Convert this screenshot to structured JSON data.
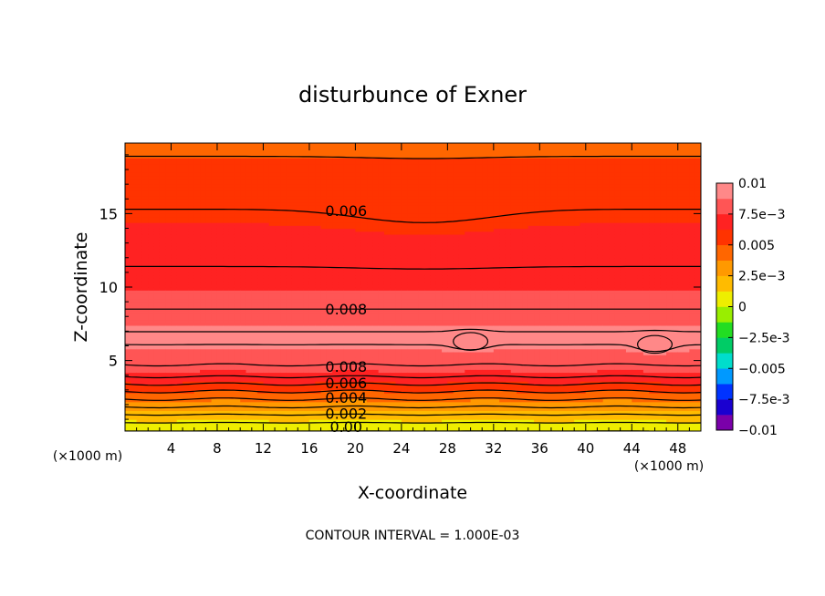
{
  "chart_data": {
    "type": "heatmap",
    "title": "disturbunce of Exner",
    "xlabel": "X-coordinate",
    "ylabel": "Z-coordinate",
    "x_unit_label": "(×1000 m)",
    "y_unit_label": "(×1000 m)",
    "x_ticks": [
      4,
      8,
      12,
      16,
      20,
      24,
      28,
      32,
      36,
      40,
      44,
      48
    ],
    "y_ticks": [
      5,
      10,
      15
    ],
    "xlim": [
      0,
      50
    ],
    "ylim": [
      0.2,
      19.8
    ],
    "footer": "CONTOUR INTERVAL = 1.000E-03",
    "colorbar": {
      "labels": [
        "0.01",
        "7.5e-3",
        "0.005",
        "2.5e-3",
        "0",
        "-2.5e-3",
        "-0.005",
        "-7.5e-3",
        "-0.01"
      ],
      "range": [
        -0.01,
        0.01
      ]
    },
    "contour_labels": [
      {
        "text": "0.006",
        "x": 19.2,
        "z": 15.2
      },
      {
        "text": "0.008",
        "x": 19.2,
        "z": 8.5
      },
      {
        "text": "0.008",
        "x": 19.2,
        "z": 4.6
      },
      {
        "text": "0.006",
        "x": 19.2,
        "z": 3.5
      },
      {
        "text": "0.004",
        "x": 19.2,
        "z": 2.5
      },
      {
        "text": "0.002",
        "x": 19.2,
        "z": 1.4
      },
      {
        "text": "0.00",
        "x": 19.2,
        "z": 0.5
      }
    ],
    "field_profile": [
      {
        "z": 0.2,
        "value": 0.0
      },
      {
        "z": 1.0,
        "value": 0.0014
      },
      {
        "z": 2.0,
        "value": 0.0033
      },
      {
        "z": 3.0,
        "value": 0.0052
      },
      {
        "z": 4.0,
        "value": 0.0072
      },
      {
        "z": 4.7,
        "value": 0.008
      },
      {
        "z": 6.5,
        "value": 0.0093
      },
      {
        "z": 8.5,
        "value": 0.008
      },
      {
        "z": 11.0,
        "value": 0.0071
      },
      {
        "z": 13.0,
        "value": 0.0066
      },
      {
        "z": 15.3,
        "value": 0.006
      },
      {
        "z": 18.9,
        "value": 0.005
      },
      {
        "z": 19.8,
        "value": 0.0045
      }
    ],
    "maxima": [
      {
        "x": 30,
        "z": 6.3
      },
      {
        "x": 46,
        "z": 6.1
      }
    ]
  }
}
